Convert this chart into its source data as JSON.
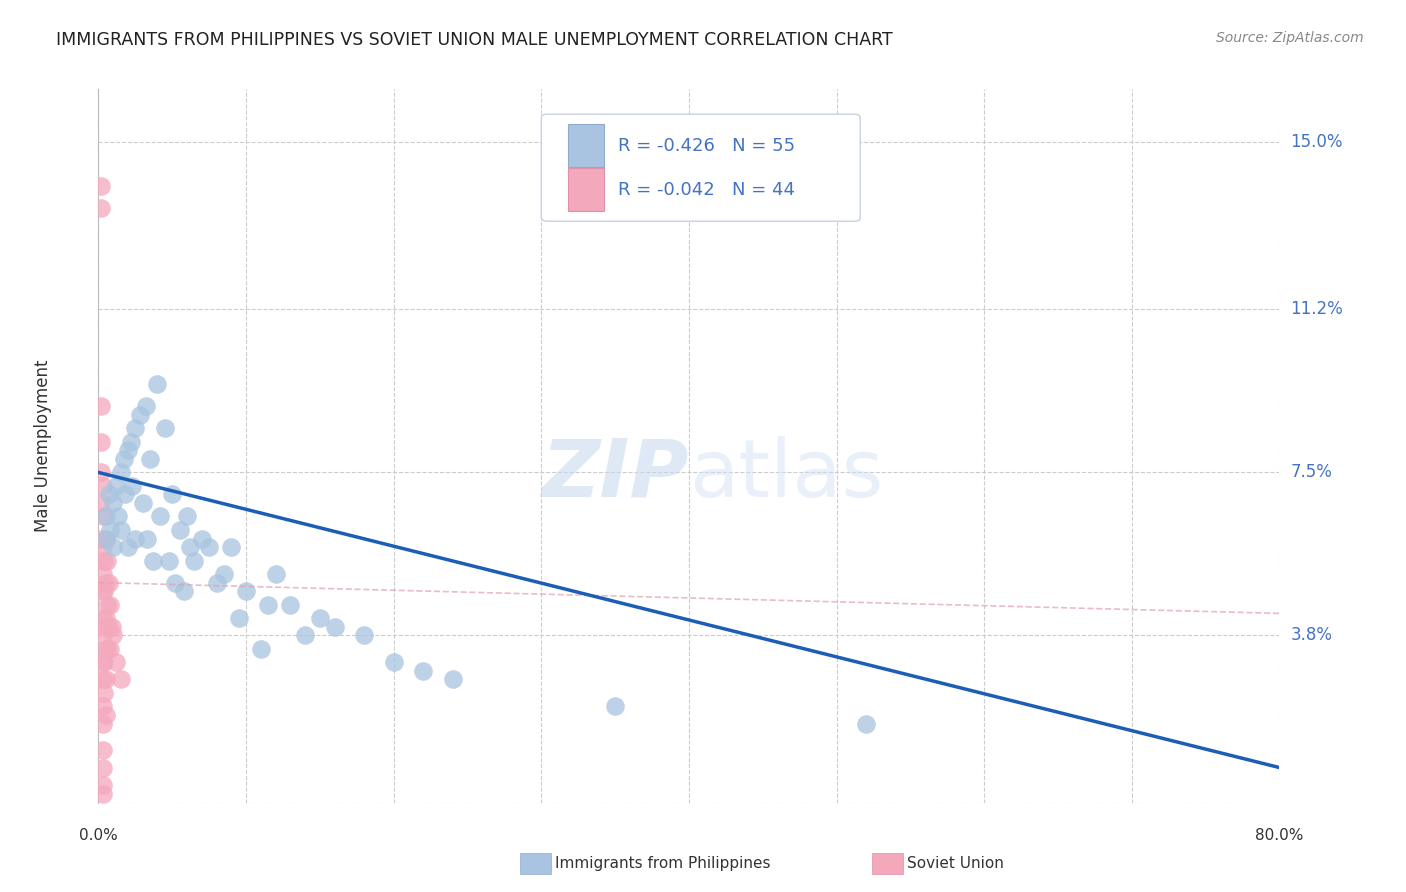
{
  "title": "IMMIGRANTS FROM PHILIPPINES VS SOVIET UNION MALE UNEMPLOYMENT CORRELATION CHART",
  "source": "Source: ZipAtlas.com",
  "ylabel": "Male Unemployment",
  "y_ticks": [
    0.0,
    0.038,
    0.075,
    0.112,
    0.15
  ],
  "y_tick_labels": [
    "",
    "3.8%",
    "7.5%",
    "11.2%",
    "15.0%"
  ],
  "xlim": [
    0.0,
    0.8
  ],
  "ylim": [
    0.0,
    0.162
  ],
  "legend1_label": "R = -0.426   N = 55",
  "legend2_label": "R = -0.042   N = 44",
  "philippines_color": "#a8c4e0",
  "soviet_color": "#f4a8bc",
  "philippines_line_color": "#1a5eb8",
  "soviet_line_color": "#dda0b0",
  "watermark_zip": "ZIP",
  "watermark_atlas": "atlas",
  "philippines_x": [
    0.005,
    0.005,
    0.007,
    0.008,
    0.01,
    0.01,
    0.012,
    0.013,
    0.015,
    0.015,
    0.017,
    0.018,
    0.02,
    0.02,
    0.022,
    0.023,
    0.025,
    0.025,
    0.028,
    0.03,
    0.032,
    0.033,
    0.035,
    0.037,
    0.04,
    0.042,
    0.045,
    0.048,
    0.05,
    0.052,
    0.055,
    0.058,
    0.06,
    0.062,
    0.065,
    0.07,
    0.075,
    0.08,
    0.085,
    0.09,
    0.095,
    0.1,
    0.11,
    0.115,
    0.12,
    0.13,
    0.14,
    0.15,
    0.16,
    0.18,
    0.2,
    0.22,
    0.24,
    0.35,
    0.52
  ],
  "philippines_y": [
    0.065,
    0.06,
    0.07,
    0.062,
    0.068,
    0.058,
    0.072,
    0.065,
    0.075,
    0.062,
    0.078,
    0.07,
    0.08,
    0.058,
    0.082,
    0.072,
    0.085,
    0.06,
    0.088,
    0.068,
    0.09,
    0.06,
    0.078,
    0.055,
    0.095,
    0.065,
    0.085,
    0.055,
    0.07,
    0.05,
    0.062,
    0.048,
    0.065,
    0.058,
    0.055,
    0.06,
    0.058,
    0.05,
    0.052,
    0.058,
    0.042,
    0.048,
    0.035,
    0.045,
    0.052,
    0.045,
    0.038,
    0.042,
    0.04,
    0.038,
    0.032,
    0.03,
    0.028,
    0.022,
    0.018
  ],
  "soviet_x": [
    0.002,
    0.002,
    0.002,
    0.002,
    0.002,
    0.002,
    0.002,
    0.003,
    0.003,
    0.003,
    0.003,
    0.003,
    0.003,
    0.003,
    0.003,
    0.003,
    0.003,
    0.003,
    0.003,
    0.003,
    0.003,
    0.003,
    0.004,
    0.004,
    0.004,
    0.004,
    0.004,
    0.005,
    0.005,
    0.005,
    0.005,
    0.005,
    0.005,
    0.006,
    0.006,
    0.006,
    0.007,
    0.007,
    0.008,
    0.008,
    0.009,
    0.01,
    0.012,
    0.015
  ],
  "soviet_y": [
    0.14,
    0.135,
    0.09,
    0.082,
    0.075,
    0.068,
    0.06,
    0.072,
    0.065,
    0.058,
    0.052,
    0.048,
    0.042,
    0.038,
    0.032,
    0.028,
    0.022,
    0.018,
    0.012,
    0.008,
    0.004,
    0.002,
    0.055,
    0.048,
    0.04,
    0.032,
    0.025,
    0.06,
    0.05,
    0.042,
    0.035,
    0.028,
    0.02,
    0.055,
    0.045,
    0.035,
    0.05,
    0.04,
    0.045,
    0.035,
    0.04,
    0.038,
    0.032,
    0.028
  ],
  "philippines_trendline_x": [
    0.0,
    0.8
  ],
  "philippines_trendline_y": [
    0.075,
    0.008
  ],
  "soviet_trendline_x": [
    0.0,
    0.8
  ],
  "soviet_trendline_y": [
    0.05,
    0.043
  ]
}
